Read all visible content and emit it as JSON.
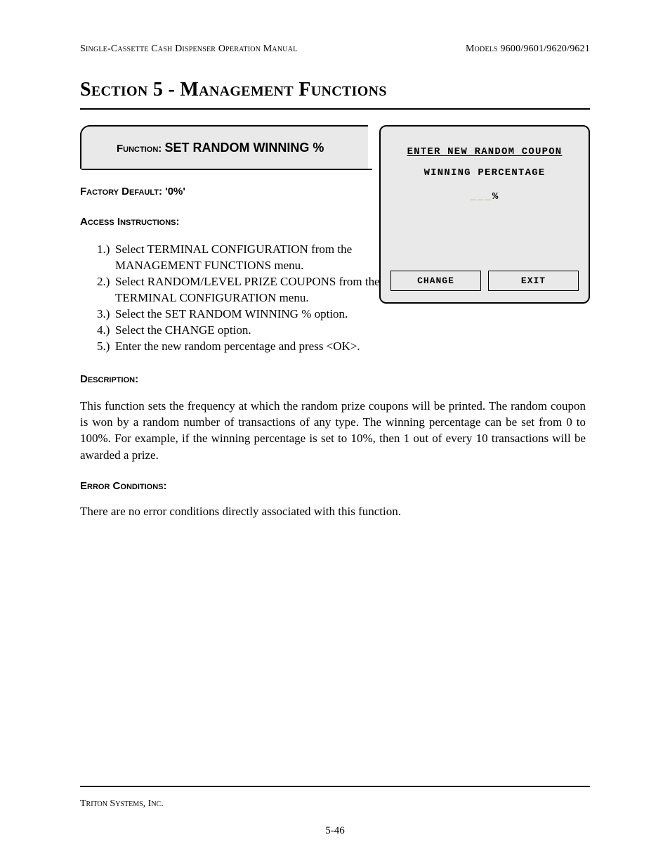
{
  "header": {
    "left": "Single-Cassette Cash Dispenser Operation Manual",
    "right": "Models 9600/9601/9620/9621"
  },
  "section_title": "Section 5 - Management Functions",
  "function_banner": {
    "label": "Function: ",
    "name": "SET RANDOM WINNING %"
  },
  "factory_default": "Factory Default: '0%'",
  "access_label": "Access Instructions:",
  "instructions": [
    {
      "n": "1.)",
      "t": "Select TERMINAL CONFIGURATION from the MANAGEMENT FUNCTIONS menu."
    },
    {
      "n": "2.)",
      "t": "Select RANDOM/LEVEL PRIZE COUPONS from the TERMINAL CONFIGURATION menu."
    },
    {
      "n": "3.)",
      "t": "Select the SET RANDOM WINNING % option."
    },
    {
      "n": "4.)",
      "t": "Select the CHANGE option."
    },
    {
      "n": "5.)",
      "t": "Enter the new random percentage and press <OK>."
    }
  ],
  "description_label": "Description:",
  "description_text": "This function sets the frequency at which the random prize coupons will be printed.  The random coupon is won by a random number of transactions of any type.  The winning percentage can be set from 0 to 100%.  For example, if the winning percentage is set to 10%, then 1 out of every 10 transactions will be awarded a prize.",
  "error_label": "Error Conditions:",
  "error_text": "There are no error conditions directly associated with this function.",
  "screen": {
    "line1": "ENTER NEW RANDOM COUPON",
    "line2": "WINNING PERCENTAGE",
    "underscores": "___",
    "percent": "%",
    "btn_change": "CHANGE",
    "btn_exit": "EXIT",
    "colors": {
      "panel_bg": "#e9e9e9",
      "border": "#000000",
      "underscore": "#76b45e"
    }
  },
  "footer": {
    "company": "Triton Systems, Inc.",
    "page": "5-46"
  }
}
